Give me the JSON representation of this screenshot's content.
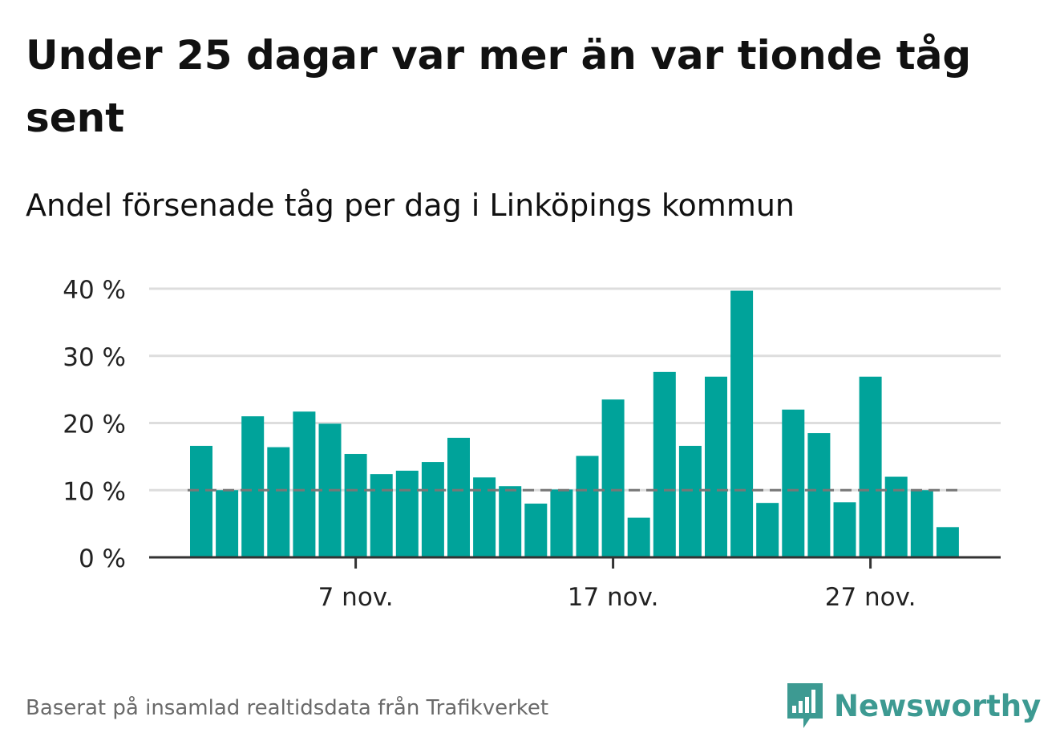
{
  "title": "Under 25 dagar var mer än var tionde tåg sent",
  "subtitle": "Andel försenade tåg per dag i Linköpings kommun",
  "source": "Baserat på insamlad realtidsdata från Trafikverket",
  "brand": {
    "name": "Newsworthy"
  },
  "colors": {
    "bar": "#00a39a",
    "reference": "#777777",
    "grid": "#dddddd",
    "axis": "#333333",
    "brand": "#3d9a92"
  },
  "chart_data": {
    "type": "bar",
    "x": [
      "1 nov.",
      "2 nov.",
      "3 nov.",
      "4 nov.",
      "5 nov.",
      "6 nov.",
      "7 nov.",
      "8 nov.",
      "9 nov.",
      "10 nov.",
      "11 nov.",
      "12 nov.",
      "13 nov.",
      "14 nov.",
      "15 nov.",
      "16 nov.",
      "17 nov.",
      "18 nov.",
      "19 nov.",
      "20 nov.",
      "21 nov.",
      "22 nov.",
      "23 nov.",
      "24 nov.",
      "25 nov.",
      "26 nov.",
      "27 nov.",
      "28 nov.",
      "29 nov.",
      "30 nov."
    ],
    "values": [
      16.6,
      10.0,
      21.0,
      16.4,
      21.7,
      19.9,
      15.4,
      12.4,
      12.9,
      14.2,
      17.8,
      11.9,
      10.6,
      8.0,
      10.1,
      15.1,
      23.5,
      5.9,
      27.6,
      16.6,
      26.9,
      39.7,
      8.1,
      22.0,
      18.5,
      8.2,
      26.9,
      12.0,
      10.0,
      4.5
    ],
    "y_ticks": [
      "0 %",
      "10 %",
      "20 %",
      "30 %",
      "40 %"
    ],
    "ylim": [
      0,
      40
    ],
    "x_tick_labels": [
      {
        "index": 6,
        "label": "7 nov."
      },
      {
        "index": 16,
        "label": "17 nov."
      },
      {
        "index": 26,
        "label": "27 nov."
      }
    ],
    "reference_line": 10,
    "grid": true
  }
}
